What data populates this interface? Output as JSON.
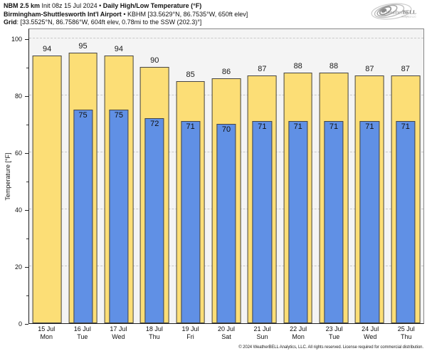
{
  "header": {
    "line1": {
      "bold1": "NBM 2.5 km",
      "normal1": " Init 08z 15 Jul 2024 • ",
      "bold2": "Daily High/Low Temperature (°F)"
    },
    "line2": {
      "bold": "Birmingham-Shuttlesworth Int'l Airport",
      "normal": " • KBHM [33.5629°N, 86.7535°W, 650ft elev]"
    },
    "line3": {
      "bold": "Grid",
      "normal": ": [33.5525°N, 86.7586°W, 604ft elev, 0.78mi to the SSW (202.3)°]"
    }
  },
  "logo": {
    "text_weather": "Weather",
    "text_bell": "BELL",
    "subtext": "Analytics LLC"
  },
  "footer": {
    "copyright": "© 2024 WeatherBELL Analytics, LLC. All rights reserved. License required for commercial distribution."
  },
  "colors": {
    "high_bar": "#fcde76",
    "low_bar": "#6090e5",
    "bar_border": "#454545",
    "plot_background": "#f4f4f4",
    "gridline": "#c9c9c9"
  },
  "chart_data": {
    "type": "bar",
    "title": "NBM 2.5 km Init 08z 15 Jul 2024 • Daily High/Low Temperature (°F)",
    "subtitle": "Birmingham-Shuttlesworth Int'l Airport • KBHM",
    "xlabel": "",
    "ylabel": "Temperature [°F]",
    "ylim": [
      0,
      104
    ],
    "grid": "horizontal dashed",
    "legend_position": "none",
    "categories": [
      "15 Jul",
      "16 Jul",
      "17 Jul",
      "18 Jul",
      "19 Jul",
      "20 Jul",
      "21 Jul",
      "22 Jul",
      "23 Jul",
      "24 Jul",
      "25 Jul"
    ],
    "days": [
      "Mon",
      "Tue",
      "Wed",
      "Thu",
      "Fri",
      "Sat",
      "Sun",
      "Mon",
      "Tue",
      "Wed",
      "Thu"
    ],
    "series": [
      {
        "name": "Daily High",
        "color": "#fcde76",
        "values": [
          94,
          95,
          94,
          90,
          85,
          86,
          87,
          88,
          88,
          87,
          87
        ]
      },
      {
        "name": "Daily Low",
        "color": "#6090e5",
        "values": [
          null,
          75,
          75,
          72,
          71,
          70,
          71,
          71,
          71,
          71,
          71
        ]
      }
    ],
    "yticks_major": [
      0,
      20,
      40,
      60,
      80,
      100
    ],
    "yticks_minor": [
      10,
      30,
      50,
      70,
      90
    ],
    "grid_values": [
      20,
      40,
      60,
      80,
      100
    ]
  }
}
